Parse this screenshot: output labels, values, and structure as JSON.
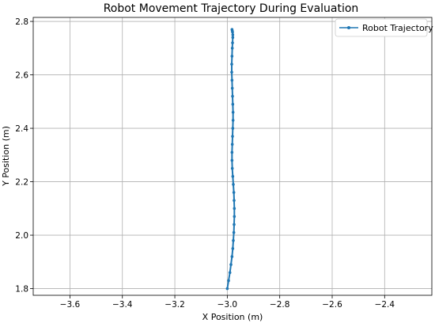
{
  "chart_data": {
    "type": "line",
    "title": "Robot Movement Trajectory During Evaluation",
    "xlabel": "X Position (m)",
    "ylabel": "Y Position (m)",
    "xlim": [
      -3.74,
      -2.22
    ],
    "ylim": [
      1.775,
      2.815
    ],
    "xticks": [
      -3.6,
      -3.4,
      -3.2,
      -3.0,
      -2.8,
      -2.6,
      -2.4
    ],
    "xtick_labels": [
      "−3.6",
      "−3.4",
      "−3.2",
      "−3.0",
      "−2.8",
      "−2.6",
      "−2.4"
    ],
    "yticks": [
      1.8,
      2.0,
      2.2,
      2.4,
      2.6,
      2.8
    ],
    "ytick_labels": [
      "1.8",
      "2.0",
      "2.2",
      "2.4",
      "2.6",
      "2.8"
    ],
    "grid": true,
    "legend_position": "top-right",
    "series": [
      {
        "name": "Robot Trajectory",
        "color": "#1f77b4",
        "marker": "point",
        "x": [
          -3.0,
          -2.995,
          -2.99,
          -2.986,
          -2.982,
          -2.979,
          -2.977,
          -2.975,
          -2.974,
          -2.973,
          -2.973,
          -2.974,
          -2.975,
          -2.977,
          -2.979,
          -2.981,
          -2.982,
          -2.982,
          -2.981,
          -2.98,
          -2.979,
          -2.978,
          -2.978,
          -2.979,
          -2.98,
          -2.981,
          -2.982,
          -2.983,
          -2.983,
          -2.982,
          -2.981,
          -2.98,
          -2.979,
          -2.979,
          -2.98,
          -2.981,
          -2.982
        ],
        "y": [
          1.8,
          1.83,
          1.86,
          1.89,
          1.92,
          1.95,
          1.98,
          2.01,
          2.04,
          2.07,
          2.1,
          2.13,
          2.16,
          2.19,
          2.22,
          2.25,
          2.28,
          2.31,
          2.34,
          2.37,
          2.4,
          2.43,
          2.46,
          2.49,
          2.52,
          2.55,
          2.58,
          2.61,
          2.64,
          2.67,
          2.7,
          2.72,
          2.74,
          2.75,
          2.76,
          2.765,
          2.77
        ]
      }
    ]
  }
}
